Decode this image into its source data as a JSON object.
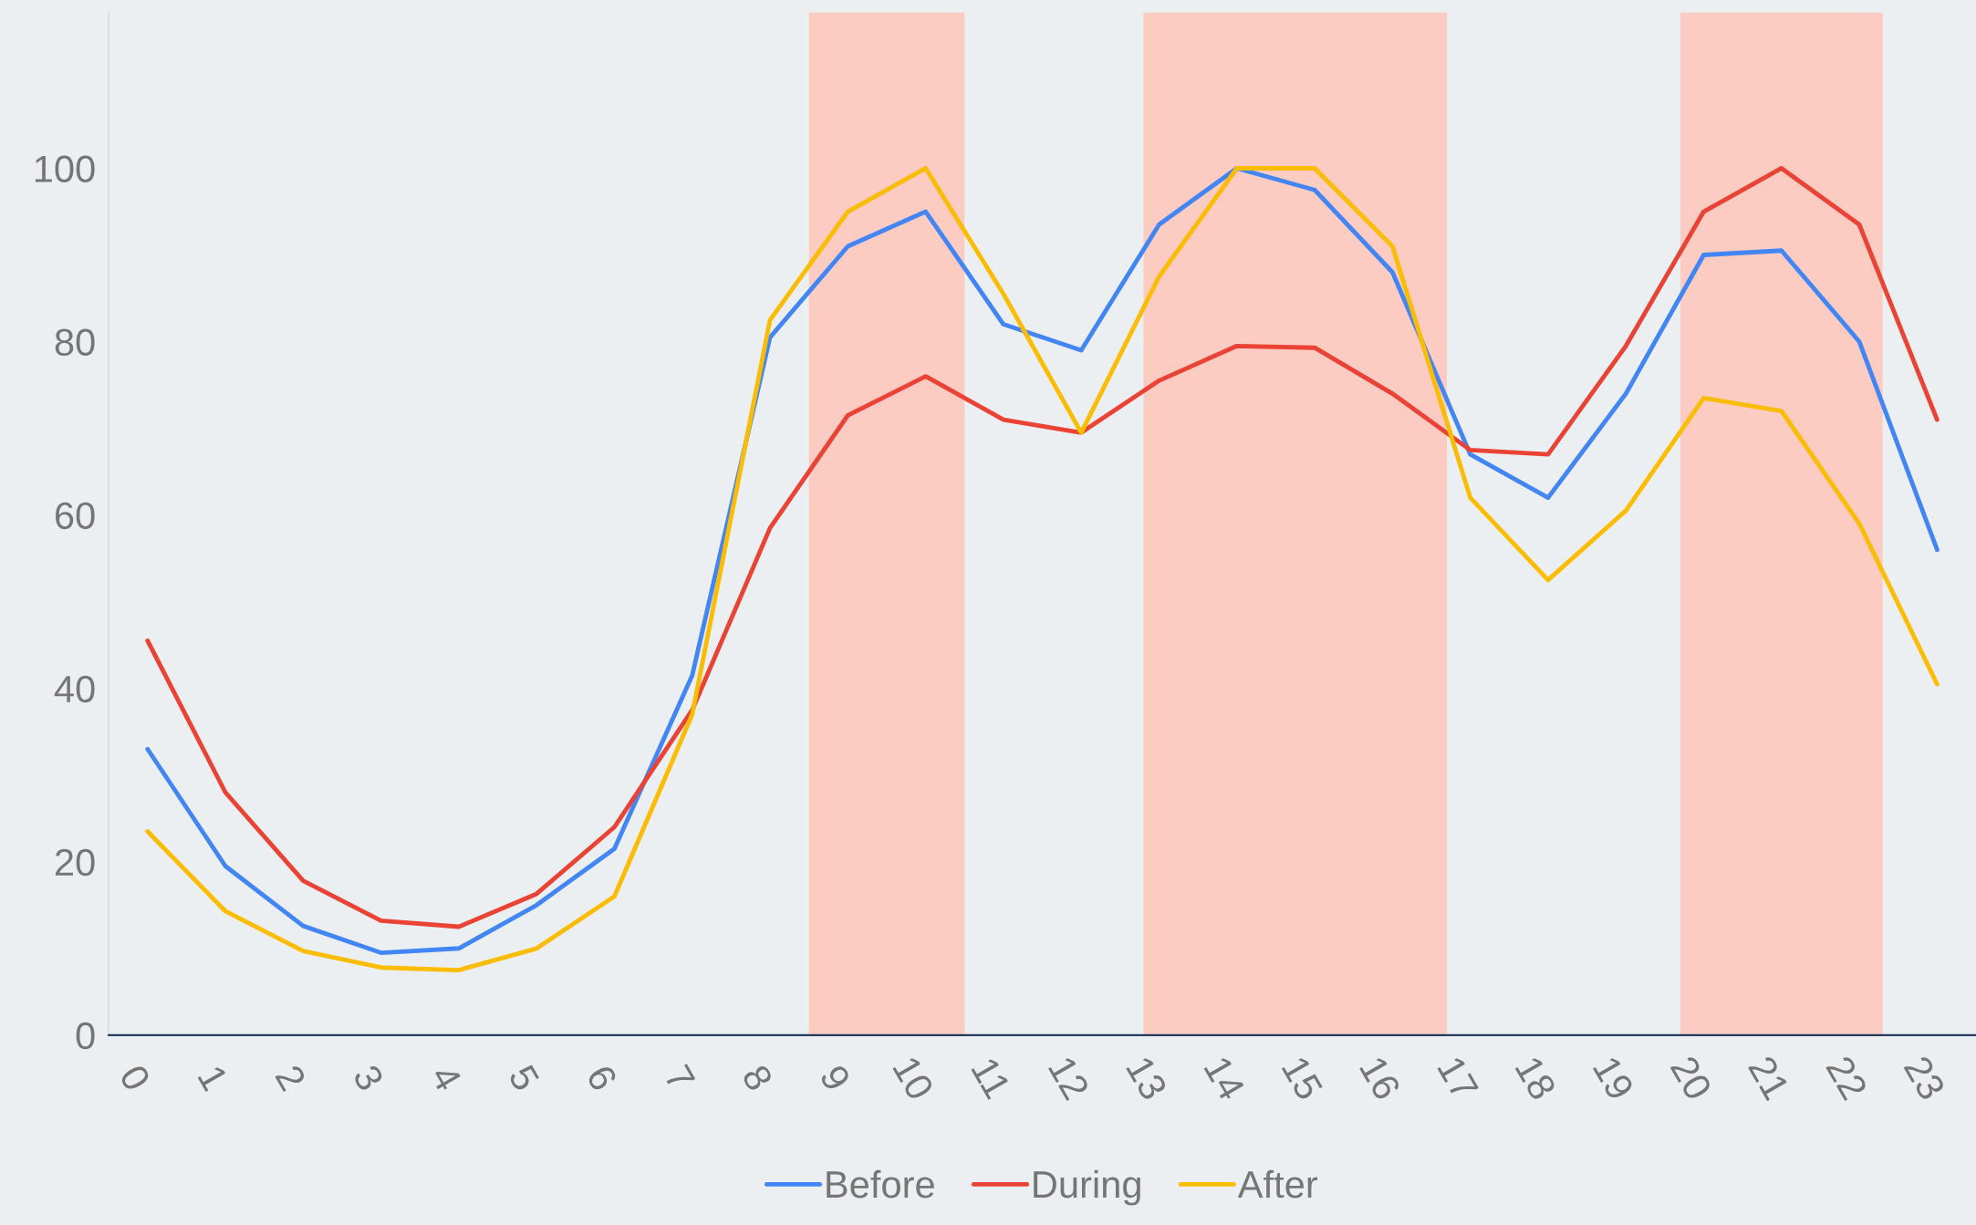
{
  "chart_data": {
    "type": "line",
    "x": [
      0,
      1,
      2,
      3,
      4,
      5,
      6,
      7,
      8,
      9,
      10,
      11,
      12,
      13,
      14,
      15,
      16,
      17,
      18,
      19,
      20,
      21,
      22,
      23
    ],
    "xlim": [
      -0.5,
      23.5
    ],
    "xticks": [
      0,
      1,
      2,
      3,
      4,
      5,
      6,
      7,
      8,
      9,
      10,
      11,
      12,
      13,
      14,
      15,
      16,
      17,
      18,
      19,
      20,
      21,
      22,
      23
    ],
    "ylim": [
      0,
      118
    ],
    "yticks": [
      0,
      20,
      40,
      60,
      80,
      100
    ],
    "grid": false,
    "legend": "bottom",
    "marker": "none",
    "line_style": "solid",
    "bands": [
      {
        "axis": "x",
        "from": 8.5,
        "to": 10.5,
        "color": "#fccbc1"
      },
      {
        "axis": "x",
        "from": 12.8,
        "to": 16.7,
        "color": "#fccbc1"
      },
      {
        "axis": "x",
        "from": 19.7,
        "to": 22.3,
        "color": "#fccbc1"
      }
    ],
    "series": [
      {
        "name": "Before",
        "color": "#4285f4",
        "values": [
          33,
          19.5,
          12.6,
          9.5,
          10,
          15,
          21.5,
          41.5,
          80.5,
          91,
          95,
          82,
          79,
          93.5,
          100,
          97.5,
          88,
          67,
          62,
          74,
          90,
          90.5,
          80,
          56
        ]
      },
      {
        "name": "During",
        "color": "#ea4335",
        "values": [
          45.5,
          28,
          17.8,
          13.2,
          12.5,
          16.3,
          24,
          37.5,
          58.5,
          71.5,
          76,
          71,
          69.5,
          75.5,
          79.5,
          79.3,
          74,
          67.5,
          67,
          79.5,
          95,
          100,
          93.5,
          71
        ]
      },
      {
        "name": "After",
        "color": "#fbbc04",
        "values": [
          23.5,
          14.3,
          9.7,
          7.8,
          7.5,
          10,
          16,
          37,
          82.5,
          95,
          100,
          85.5,
          69.5,
          87.5,
          100,
          100,
          91,
          62,
          52.5,
          60.5,
          73.5,
          72,
          59,
          40.5
        ]
      }
    ]
  }
}
